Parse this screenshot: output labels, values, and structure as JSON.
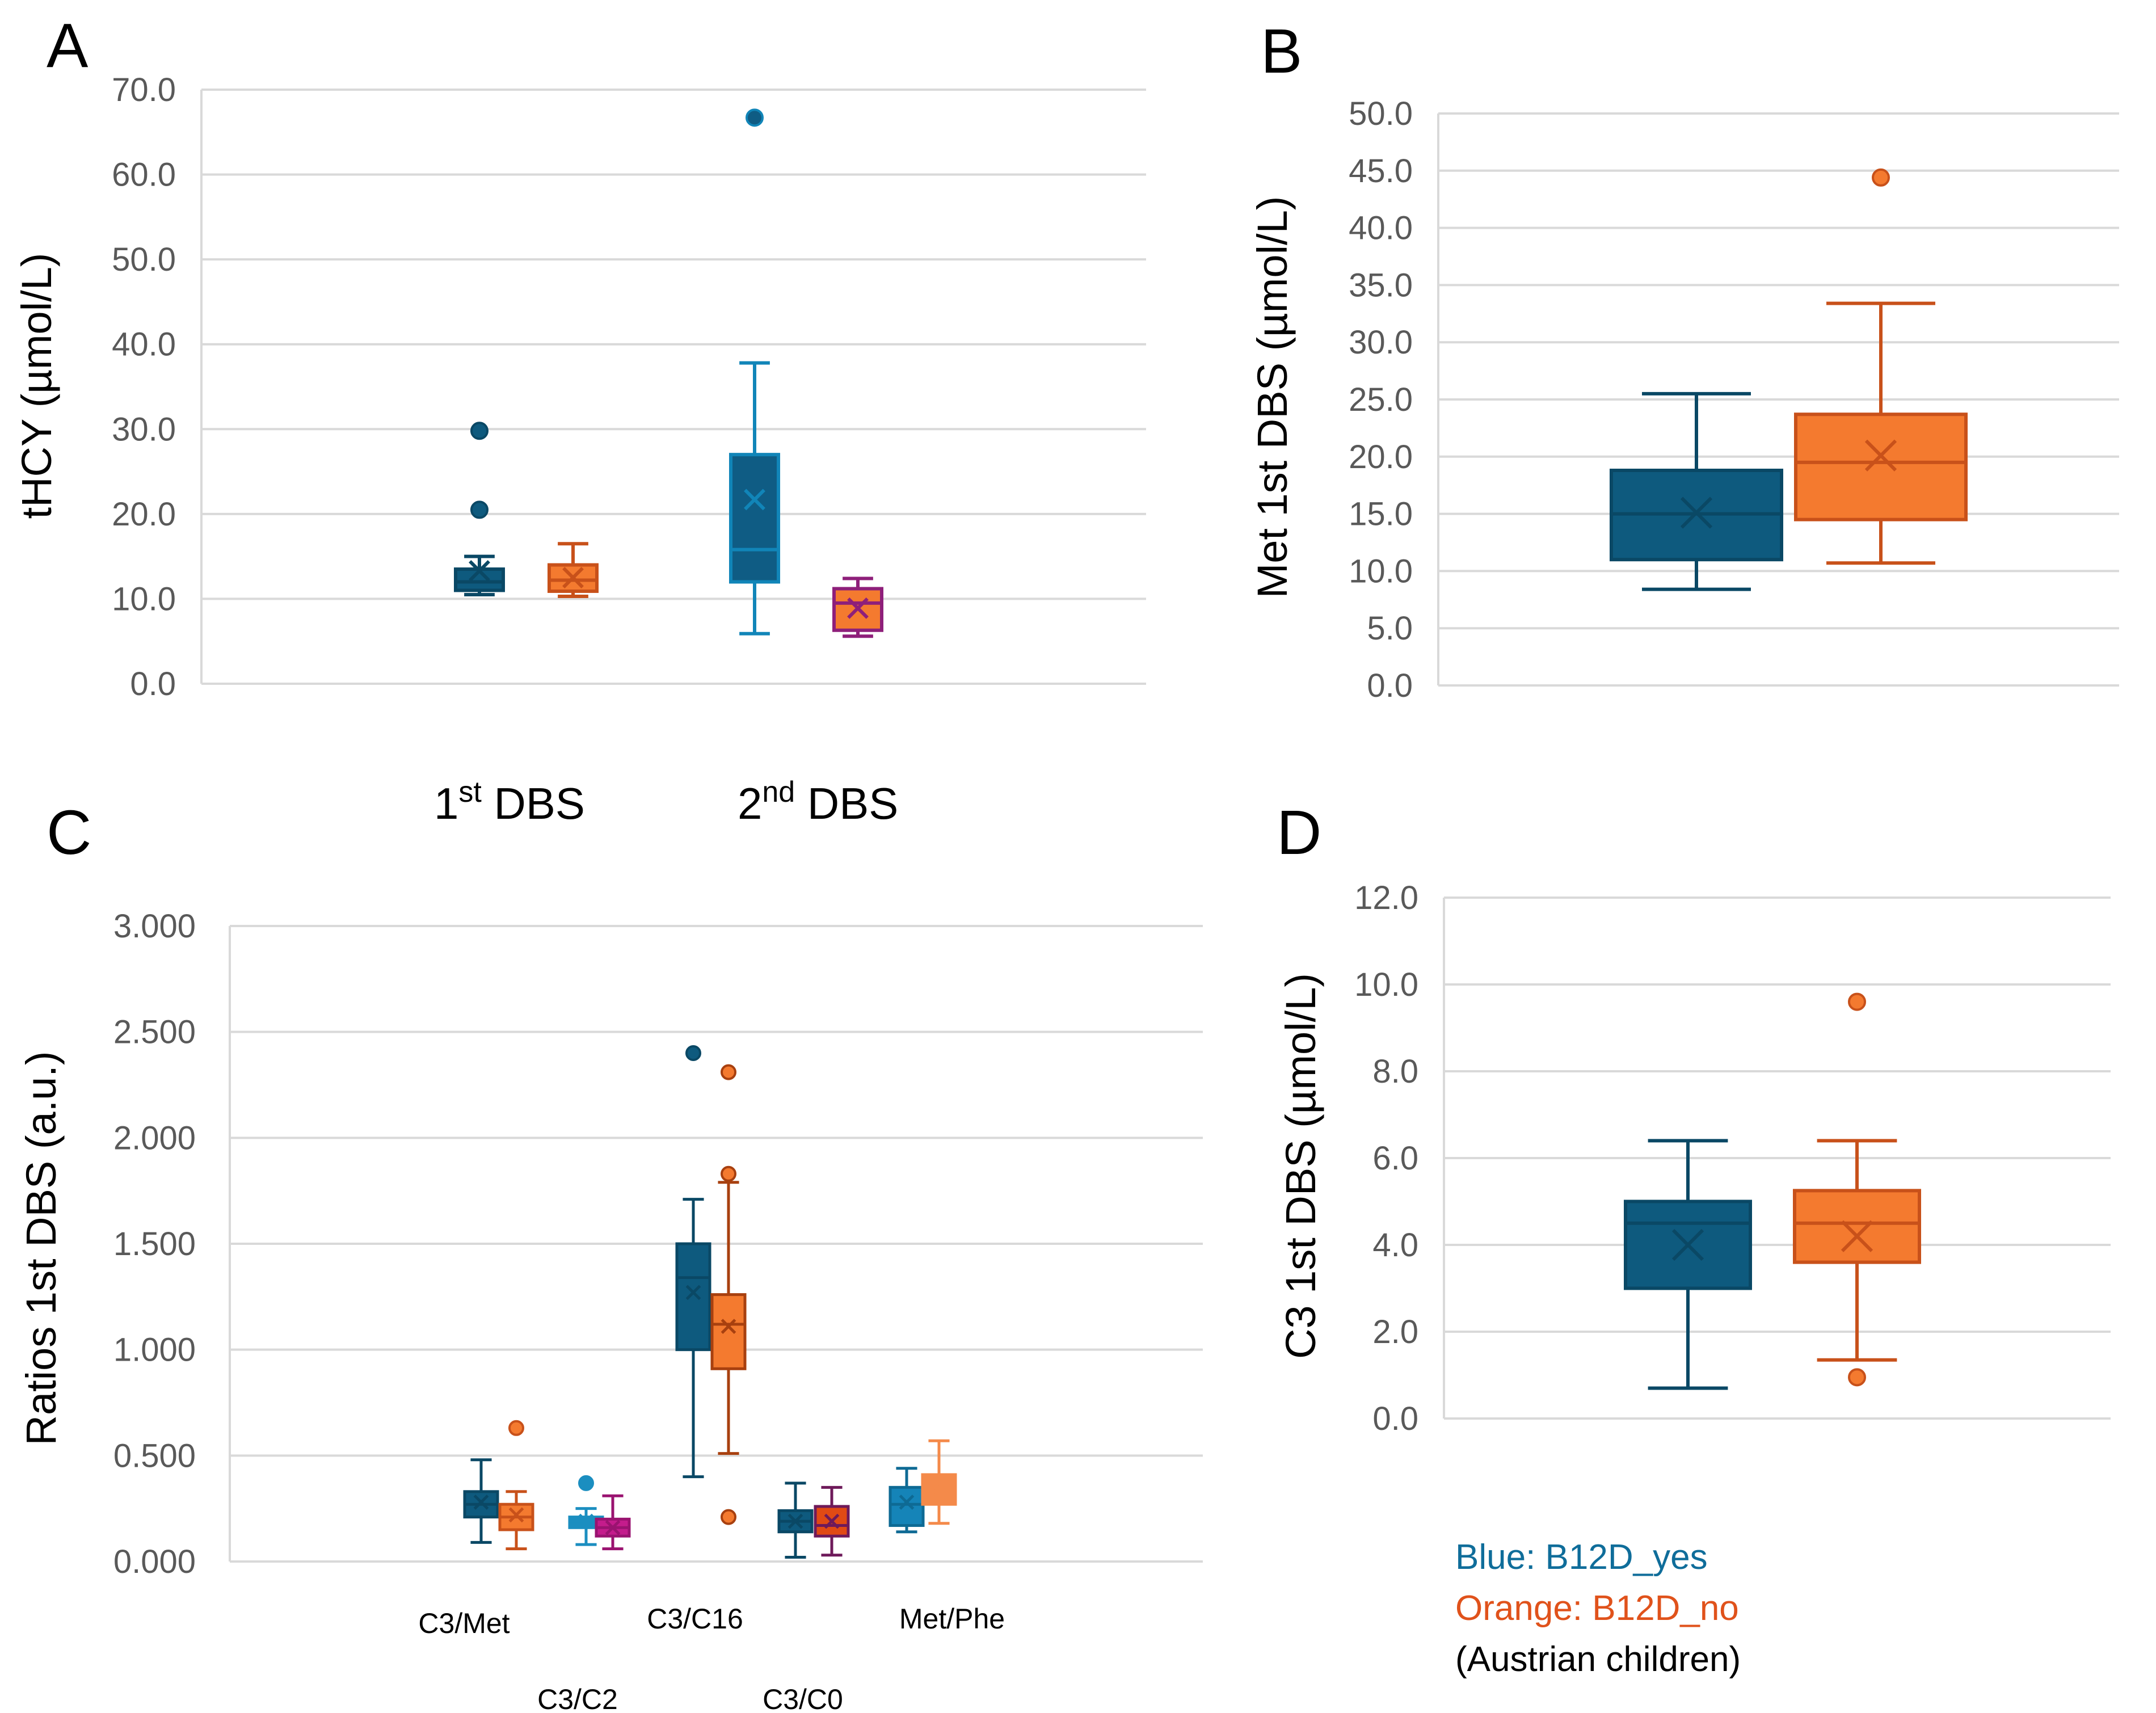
{
  "legend": {
    "blue_label": "Blue: B12D_yes",
    "orange_label": "Orange: B12D_no",
    "note": "(Austrian children)",
    "blue_color": "#0F6D9A",
    "orange_color": "#E0521B"
  },
  "dbs_labels": {
    "first_prefix": "1",
    "first_sup": "st",
    "first_suffix": " DBS",
    "second_prefix": "2",
    "second_sup": "nd",
    "second_suffix": " DBS"
  },
  "chart_data": [
    {
      "panel": "A",
      "type": "box",
      "ylabel": "tHCY (µmol/L)",
      "ylim": [
        0,
        70
      ],
      "ticks": [
        0,
        10,
        20,
        30,
        40,
        50,
        60,
        70
      ],
      "tick_labels": [
        "0.0",
        "10.0",
        "20.0",
        "30.0",
        "40.0",
        "50.0",
        "60.0",
        "70.0"
      ],
      "categories": [
        "1st DBS",
        "2nd DBS"
      ],
      "boxes": [
        {
          "group": "1st DBS",
          "series": "B12D_yes",
          "fill": "#0E5A7E",
          "stroke": "#0A4865",
          "whisker_lo": 10.5,
          "q1": 11.0,
          "median": 12.0,
          "q3": 13.5,
          "whisker_hi": 15.0,
          "mean": 13.3,
          "outliers": [
            20.5,
            29.8
          ]
        },
        {
          "group": "1st DBS",
          "series": "B12D_no",
          "fill": "#F47A2F",
          "stroke": "#C8511A",
          "whisker_lo": 10.3,
          "q1": 10.9,
          "median": 12.2,
          "q3": 14.0,
          "whisker_hi": 16.5,
          "mean": 12.5,
          "outliers": []
        },
        {
          "group": "2nd DBS",
          "series": "B12D_yes",
          "fill": "#0F5C84",
          "stroke": "#1185B8",
          "whisker_lo": 5.9,
          "q1": 12.0,
          "median": 15.8,
          "q3": 27.0,
          "whisker_hi": 37.8,
          "mean": 21.7,
          "outliers": [
            66.7
          ]
        },
        {
          "group": "2nd DBS",
          "series": "B12D_no",
          "fill": "#F47A2F",
          "stroke": "#8E1F7A",
          "whisker_lo": 5.6,
          "q1": 6.3,
          "median": 9.5,
          "q3": 11.2,
          "whisker_hi": 12.4,
          "mean": 8.9,
          "outliers": []
        }
      ]
    },
    {
      "panel": "B",
      "type": "box",
      "ylabel": "Met 1st DBS (µmol/L)",
      "ylim": [
        0,
        50
      ],
      "ticks": [
        0,
        5,
        10,
        15,
        20,
        25,
        30,
        35,
        40,
        45,
        50
      ],
      "tick_labels": [
        "0.0",
        "5.0",
        "10.0",
        "15.0",
        "20.0",
        "25.0",
        "30.0",
        "35.0",
        "40.0",
        "45.0",
        "50.0"
      ],
      "boxes": [
        {
          "series": "B12D_yes",
          "fill": "#0E5A7E",
          "stroke": "#0A4865",
          "whisker_lo": 8.4,
          "q1": 11.0,
          "median": 15.0,
          "q3": 18.8,
          "whisker_hi": 25.5,
          "mean": 15.1,
          "outliers": []
        },
        {
          "series": "B12D_no",
          "fill": "#F47A2F",
          "stroke": "#C8511A",
          "whisker_lo": 10.7,
          "q1": 14.5,
          "median": 19.5,
          "q3": 23.7,
          "whisker_hi": 33.4,
          "mean": 20.1,
          "outliers": [
            44.4
          ]
        }
      ]
    },
    {
      "panel": "C",
      "type": "box",
      "ylabel": "Ratios 1st DBS (a.u.)",
      "ylim": [
        0,
        3
      ],
      "ticks": [
        0,
        0.5,
        1,
        1.5,
        2,
        2.5,
        3
      ],
      "tick_labels": [
        "0.000",
        "0.500",
        "1.000",
        "1.500",
        "2.000",
        "2.500",
        "3.000"
      ],
      "categories": [
        "C3/Met",
        "C3/C2",
        "C3/C16",
        "C3/C0",
        "Met/Phe"
      ],
      "boxes": [
        {
          "group": "C3/Met",
          "series": "B12D_yes",
          "fill": "#0E5A7E",
          "stroke": "#0A4865",
          "whisker_lo": 0.09,
          "q1": 0.21,
          "median": 0.27,
          "q3": 0.33,
          "whisker_hi": 0.48,
          "mean": 0.28,
          "outliers": []
        },
        {
          "group": "C3/Met",
          "series": "B12D_no",
          "fill": "#F47A2F",
          "stroke": "#C8511A",
          "whisker_lo": 0.06,
          "q1": 0.15,
          "median": 0.21,
          "q3": 0.27,
          "whisker_hi": 0.33,
          "mean": 0.22,
          "outliers": [
            0.63
          ]
        },
        {
          "group": "C3/C2",
          "series": "B12D_yes",
          "fill": "#1B8EC0",
          "stroke": "#1B8EC0",
          "whisker_lo": 0.08,
          "q1": 0.16,
          "median": 0.19,
          "q3": 0.21,
          "whisker_hi": 0.25,
          "mean": 0.19,
          "outliers": [
            0.37
          ]
        },
        {
          "group": "C3/C2",
          "series": "B12D_no",
          "fill": "#C41C8C",
          "stroke": "#9A1370",
          "whisker_lo": 0.06,
          "q1": 0.12,
          "median": 0.16,
          "q3": 0.2,
          "whisker_hi": 0.31,
          "mean": 0.16,
          "outliers": []
        },
        {
          "group": "C3/C16",
          "series": "B12D_yes",
          "fill": "#0E5A7E",
          "stroke": "#0A4865",
          "whisker_lo": 0.4,
          "q1": 1.0,
          "median": 1.34,
          "q3": 1.5,
          "whisker_hi": 1.71,
          "mean": 1.27,
          "outliers": [
            2.4
          ]
        },
        {
          "group": "C3/C16",
          "series": "B12D_no",
          "fill": "#F47A2F",
          "stroke": "#A8400F",
          "whisker_lo": 0.51,
          "q1": 0.91,
          "median": 1.12,
          "q3": 1.26,
          "whisker_hi": 1.79,
          "mean": 1.11,
          "outliers": [
            0.21,
            1.83,
            2.31
          ]
        },
        {
          "group": "C3/C0",
          "series": "B12D_yes",
          "fill": "#0E5A7E",
          "stroke": "#0A4865",
          "whisker_lo": 0.02,
          "q1": 0.14,
          "median": 0.19,
          "q3": 0.24,
          "whisker_hi": 0.37,
          "mean": 0.19,
          "outliers": []
        },
        {
          "group": "C3/C0",
          "series": "B12D_no",
          "fill": "#E04A14",
          "stroke": "#6E1A5A",
          "whisker_lo": 0.03,
          "q1": 0.12,
          "median": 0.17,
          "q3": 0.26,
          "whisker_hi": 0.35,
          "mean": 0.19,
          "outliers": []
        },
        {
          "group": "Met/Phe",
          "series": "B12D_yes",
          "fill": "#1584B8",
          "stroke": "#0E6A94",
          "whisker_lo": 0.14,
          "q1": 0.17,
          "median": 0.27,
          "q3": 0.35,
          "whisker_hi": 0.44,
          "mean": 0.28,
          "outliers": []
        },
        {
          "group": "Met/Phe",
          "series": "B12D_no",
          "fill": "#F48A4A",
          "stroke": "#F48A4A",
          "whisker_lo": 0.18,
          "q1": 0.27,
          "median": 0.34,
          "q3": 0.41,
          "whisker_hi": 0.57,
          "mean": 0.35,
          "outliers": []
        }
      ]
    },
    {
      "panel": "D",
      "type": "box",
      "ylabel": "C3 1st DBS (µmol/L)",
      "ylim": [
        0,
        12
      ],
      "ticks": [
        0,
        2,
        4,
        6,
        8,
        10,
        12
      ],
      "tick_labels": [
        "0.0",
        "2.0",
        "4.0",
        "6.0",
        "8.0",
        "10.0",
        "12.0"
      ],
      "boxes": [
        {
          "series": "B12D_yes",
          "fill": "#0E5A7E",
          "stroke": "#0A4865",
          "whisker_lo": 0.7,
          "q1": 3.0,
          "median": 4.5,
          "q3": 5.0,
          "whisker_hi": 6.4,
          "mean": 4.0,
          "outliers": []
        },
        {
          "series": "B12D_no",
          "fill": "#F47A2F",
          "stroke": "#C8511A",
          "whisker_lo": 1.35,
          "q1": 3.6,
          "median": 4.5,
          "q3": 5.25,
          "whisker_hi": 6.4,
          "mean": 4.2,
          "outliers": [
            0.95,
            9.6
          ]
        }
      ]
    }
  ]
}
